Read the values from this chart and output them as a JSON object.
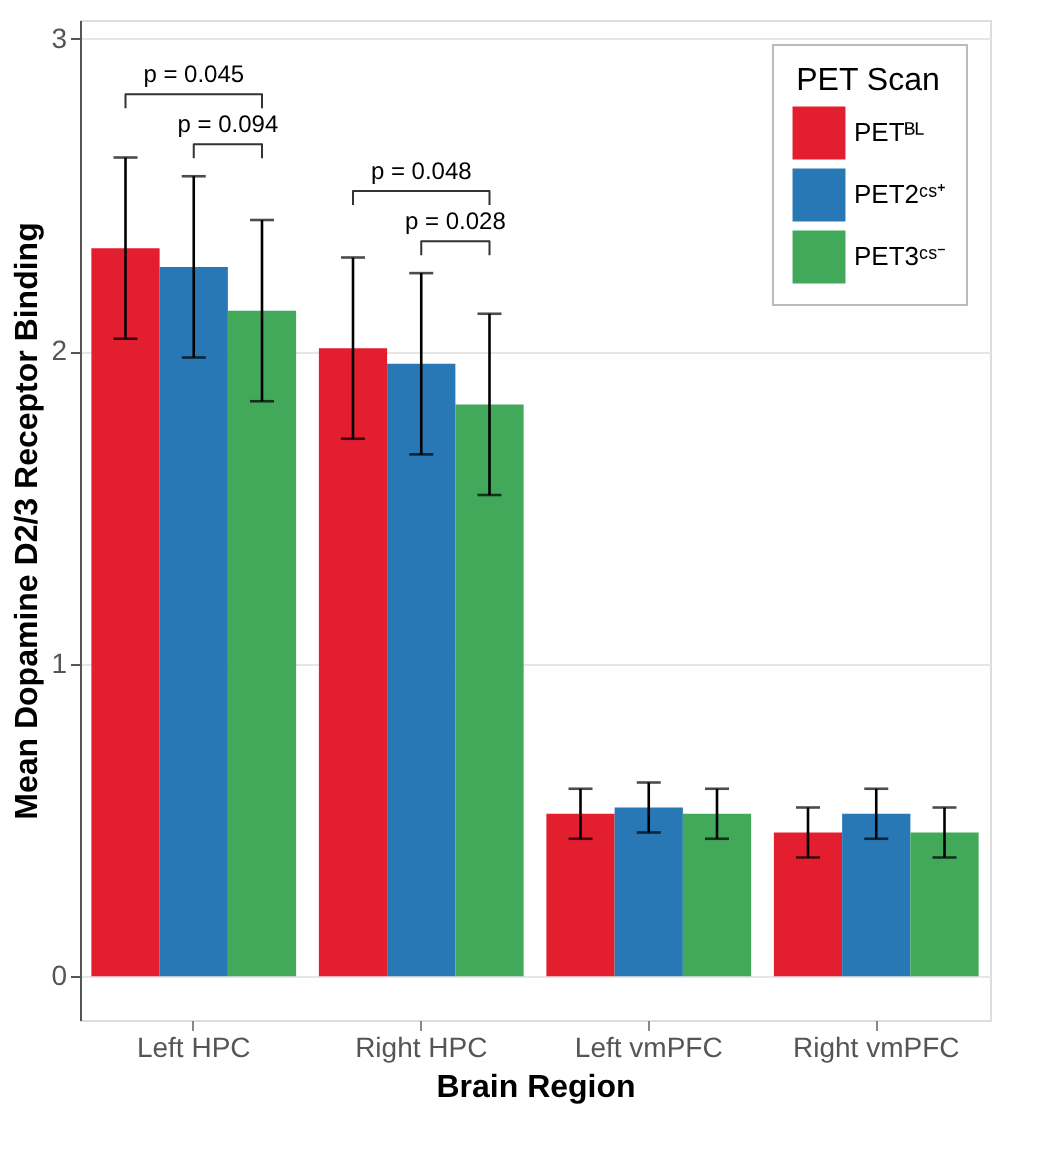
{
  "chart_data": {
    "type": "bar",
    "xlabel": "Brain Region",
    "ylabel": "Mean Dopamine D2/3 Receptor Binding",
    "legend_title": "PET Scan",
    "legend": "top right",
    "grid": "y",
    "categories": [
      "Left HPC",
      "Right HPC",
      "Left vmPFC",
      "Right vmPFC"
    ],
    "series": [
      {
        "name": "PETᴮᴸ",
        "color": "#e31e2f",
        "values": [
          2.33,
          2.01,
          0.52,
          0.46
        ],
        "errors": [
          0.29,
          0.29,
          0.08,
          0.08
        ]
      },
      {
        "name": "PET2ᶜˢ⁺",
        "color": "#2878b5",
        "values": [
          2.27,
          1.96,
          0.54,
          0.52
        ],
        "errors": [
          0.29,
          0.29,
          0.08,
          0.08
        ]
      },
      {
        "name": "PET3ᶜˢ⁻",
        "color": "#42a85a",
        "values": [
          2.13,
          1.83,
          0.52,
          0.46
        ],
        "errors": [
          0.29,
          0.29,
          0.08,
          0.08
        ]
      }
    ],
    "ylim": [
      -0.14,
      3.06
    ],
    "yticks": [
      0,
      1,
      2,
      3
    ],
    "annotations": [
      "p = 0.045",
      "p = 0.094",
      "p = 0.048",
      "p = 0.028"
    ]
  }
}
